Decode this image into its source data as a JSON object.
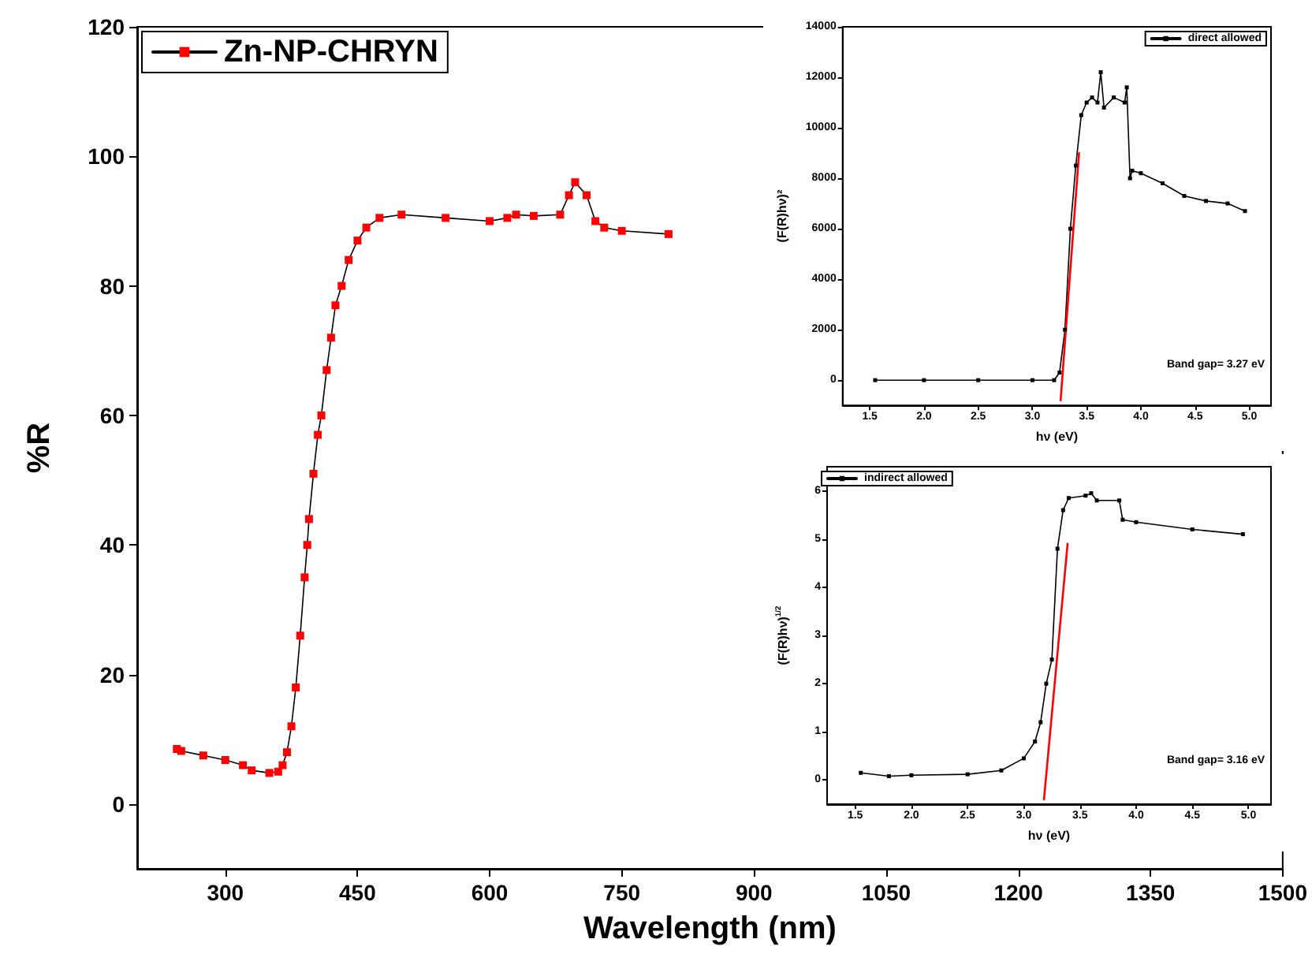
{
  "chart_data": [
    {
      "type": "line",
      "xlabel": "Wavelength (nm)",
      "ylabel": "%R",
      "xlim": [
        200,
        1500
      ],
      "xticks": [
        300,
        450,
        600,
        750,
        900,
        1050,
        1200,
        1350,
        1500
      ],
      "ylim": [
        -10,
        120
      ],
      "yticks": [
        0,
        20,
        40,
        60,
        80,
        100,
        120
      ],
      "grid": false,
      "legend": "top left",
      "marker": "square",
      "line_style": "solid",
      "series": [
        {
          "name": "Zn-NP-CHRYN",
          "color": "#ff0000",
          "x": [
            245,
            250,
            275,
            300,
            320,
            330,
            350,
            360,
            365,
            370,
            375,
            380,
            385,
            390,
            393,
            395,
            400,
            405,
            409,
            415,
            420,
            425,
            432,
            440,
            450,
            460,
            475,
            500,
            550,
            600,
            620,
            630,
            650,
            680,
            690,
            697,
            710,
            720,
            730,
            750,
            803
          ],
          "values": [
            8.5,
            8.2,
            7.5,
            6.8,
            6,
            5.2,
            4.8,
            5,
            6,
            8,
            12,
            18,
            26,
            35,
            40,
            44,
            51,
            57,
            60,
            67,
            72,
            77,
            80,
            84,
            87,
            89,
            90.5,
            91,
            90.5,
            90,
            90.5,
            91,
            90.8,
            91,
            94,
            96,
            94,
            90,
            89,
            88.5,
            88
          ]
        }
      ]
    },
    {
      "type": "line",
      "xlabel": "hν (eV)",
      "ylabel": "(F(R)hν)²",
      "xlim": [
        1.25,
        5.2
      ],
      "xticks": [
        1.5,
        {
          "value": 2,
          "label": "2.0"
        },
        2.5,
        {
          "value": 3,
          "label": "3.0"
        },
        3.5,
        {
          "value": 4,
          "label": "4.0"
        },
        4.5,
        {
          "value": 5,
          "label": "5.0"
        }
      ],
      "ylim": [
        -1000,
        14000
      ],
      "yticks": [
        0,
        2000,
        4000,
        6000,
        8000,
        10000,
        12000,
        14000
      ],
      "grid": false,
      "legend": "top right",
      "marker": "square",
      "line_style": "solid",
      "annotations": [
        "Band gap= 3.27 eV"
      ],
      "series": [
        {
          "name": "direct allowed",
          "color": "#000000",
          "x": [
            1.55,
            2.0,
            2.5,
            3.0,
            3.2,
            3.25,
            3.3,
            3.35,
            3.4,
            3.45,
            3.5,
            3.55,
            3.6,
            3.63,
            3.66,
            3.75,
            3.85,
            3.87,
            3.9,
            3.92,
            4.0,
            4.2,
            4.4,
            4.6,
            4.8,
            4.96
          ],
          "values": [
            0,
            0,
            0,
            0,
            0,
            300,
            2000,
            6000,
            8500,
            10500,
            11000,
            11200,
            11000,
            12200,
            10800,
            11200,
            11000,
            11600,
            8000,
            8300,
            8200,
            7800,
            7300,
            7100,
            7000,
            6700
          ]
        },
        {
          "color": "#ff0000",
          "marker": "none",
          "x": [
            3.26,
            3.43
          ],
          "values": [
            -800,
            9000
          ]
        }
      ]
    },
    {
      "type": "line",
      "xlabel": "hν (eV)",
      "ylabel": "(F(R)hν)$^{1/2}$",
      "xlim": [
        1.25,
        5.2
      ],
      "xticks": [
        1.5,
        {
          "value": 2,
          "label": "2.0"
        },
        2.5,
        {
          "value": 3,
          "label": "3.0"
        },
        3.5,
        {
          "value": 4,
          "label": "4.0"
        },
        4.5,
        {
          "value": 5,
          "label": "5.0"
        }
      ],
      "ylim": [
        -0.5,
        6.5
      ],
      "yticks": [
        0,
        1,
        2,
        3,
        4,
        5,
        6
      ],
      "grid": false,
      "legend": "top left",
      "marker": "square",
      "line_style": "solid",
      "annotations": [
        "Band gap= 3.16 eV"
      ],
      "series": [
        {
          "name": "indirect allowed",
          "color": "#000000",
          "x": [
            1.55,
            1.8,
            2.0,
            2.5,
            2.8,
            3.0,
            3.1,
            3.15,
            3.2,
            3.25,
            3.3,
            3.35,
            3.4,
            3.55,
            3.6,
            3.65,
            3.85,
            3.88,
            4.0,
            4.5,
            4.95
          ],
          "values": [
            0.15,
            0.08,
            0.1,
            0.12,
            0.2,
            0.45,
            0.8,
            1.2,
            2.0,
            2.5,
            4.8,
            5.6,
            5.85,
            5.9,
            5.95,
            5.8,
            5.8,
            5.4,
            5.35,
            5.2,
            5.1
          ]
        },
        {
          "color": "#ff0000",
          "marker": "none",
          "x": [
            3.18,
            3.39
          ],
          "values": [
            -0.4,
            4.9
          ]
        }
      ]
    }
  ]
}
